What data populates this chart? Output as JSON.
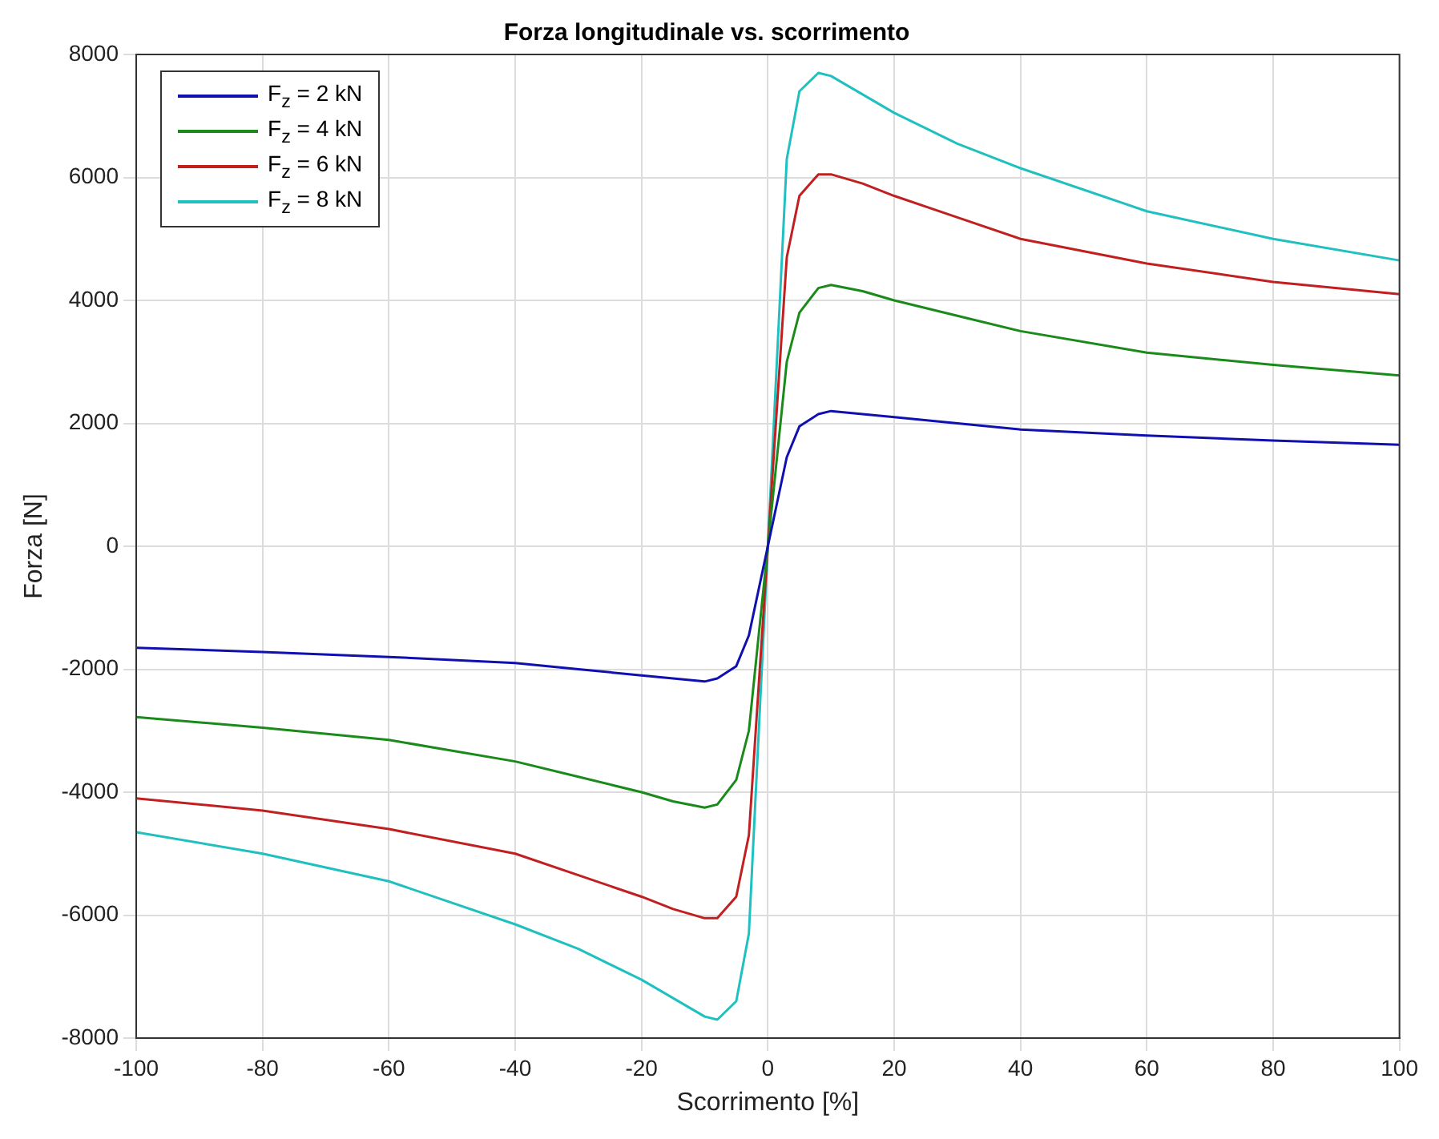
{
  "chart_data": {
    "type": "line",
    "title": "Forza longitudinale vs. scorrimento",
    "xlabel": "Scorrimento [%]",
    "ylabel": "Forza [N]",
    "x": [
      -100,
      -80,
      -60,
      -40,
      -30,
      -20,
      -15,
      -10,
      -8,
      -5,
      -3,
      0,
      3,
      5,
      8,
      10,
      15,
      20,
      30,
      40,
      60,
      80,
      100
    ],
    "series": [
      {
        "name": "F$_{z}$ = 2 kN",
        "color": "#1010b0",
        "values": [
          -1650,
          -1720,
          -1800,
          -1900,
          -2000,
          -2100,
          -2150,
          -2200,
          -2150,
          -1950,
          -1450,
          0,
          1450,
          1950,
          2150,
          2200,
          2150,
          2100,
          2000,
          1900,
          1800,
          1720,
          1650
        ]
      },
      {
        "name": "F$_{z}$ = 4 kN",
        "color": "#1a8a1a",
        "values": [
          -2780,
          -2950,
          -3150,
          -3500,
          -3750,
          -4000,
          -4150,
          -4250,
          -4200,
          -3800,
          -3000,
          0,
          3000,
          3800,
          4200,
          4250,
          4150,
          4000,
          3750,
          3500,
          3150,
          2950,
          2780
        ]
      },
      {
        "name": "F$_{z}$ = 6 kN",
        "color": "#c02020",
        "values": [
          -4100,
          -4300,
          -4600,
          -5000,
          -5350,
          -5700,
          -5900,
          -6050,
          -6050,
          -5700,
          -4700,
          0,
          4700,
          5700,
          6050,
          6050,
          5900,
          5700,
          5350,
          5000,
          4600,
          4300,
          4100
        ]
      },
      {
        "name": "F$_{z}$ = 8 kN",
        "color": "#20c0c0",
        "values": [
          -4650,
          -5000,
          -5450,
          -6150,
          -6550,
          -7050,
          -7350,
          -7650,
          -7700,
          -7400,
          -6300,
          0,
          6300,
          7400,
          7700,
          7650,
          7350,
          7050,
          6550,
          6150,
          5450,
          5000,
          4650
        ]
      }
    ],
    "xlim": [
      -100,
      100
    ],
    "xticks": [
      -100,
      -80,
      -60,
      -40,
      -20,
      0,
      20,
      40,
      60,
      80,
      100
    ],
    "ylim": [
      -8000,
      8000
    ],
    "yticks": [
      -8000,
      -6000,
      -4000,
      -2000,
      0,
      2000,
      4000,
      6000,
      8000
    ],
    "grid": true,
    "legend": "top left",
    "marker": "none",
    "line_style": "solid"
  }
}
